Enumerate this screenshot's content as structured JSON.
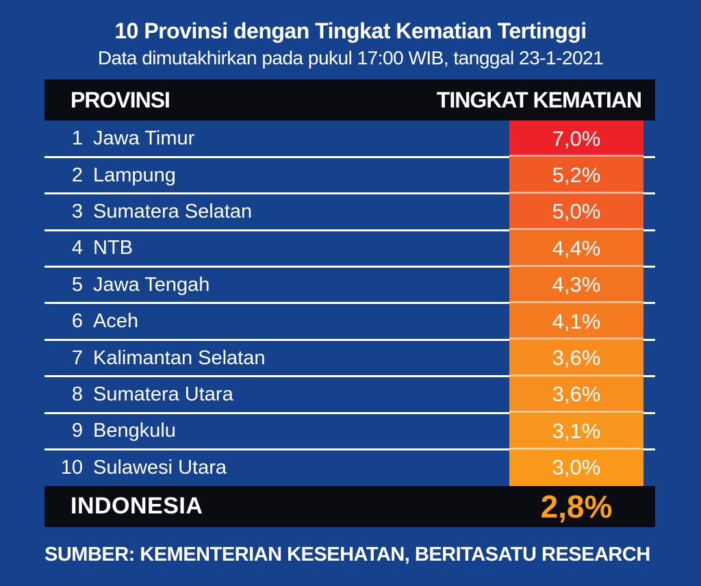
{
  "title": "10 Provinsi dengan Tingkat Kematian Tertinggi",
  "subtitle": "Data dimutakhirkan pada pukul 17:00 WIB, tanggal 23-1-2021",
  "table": {
    "columns": {
      "province": "PROVINSI",
      "rate": "TINGKAT KEMATIAN"
    },
    "rows": [
      {
        "rank": "1",
        "province": "Jawa Timur",
        "rate": "7,0%",
        "color": "#ED2128"
      },
      {
        "rank": "2",
        "province": "Lampung",
        "rate": "5,2%",
        "color": "#F15A25"
      },
      {
        "rank": "3",
        "province": "Sumatera Selatan",
        "rate": "5,0%",
        "color": "#F15D24"
      },
      {
        "rank": "4",
        "province": "NTB",
        "rate": "4,4%",
        "color": "#F37020"
      },
      {
        "rank": "5",
        "province": "Jawa Tengah",
        "rate": "4,3%",
        "color": "#F37420"
      },
      {
        "rank": "6",
        "province": "Aceh",
        "rate": "4,1%",
        "color": "#F47B1F"
      },
      {
        "rank": "7",
        "province": "Kalimantan Selatan",
        "rate": "3,6%",
        "color": "#F78D1E"
      },
      {
        "rank": "8",
        "province": "Sumatera Utara",
        "rate": "3,6%",
        "color": "#F78F1E"
      },
      {
        "rank": "9",
        "province": "Bengkulu",
        "rate": "3,1%",
        "color": "#F8971D"
      },
      {
        "rank": "10",
        "province": "Sulawesi Utara",
        "rate": "3,0%",
        "color": "#F99A1C"
      }
    ],
    "summary": {
      "label": "INDONESIA",
      "rate": "2,8%",
      "rate_color": "#F9A01B"
    }
  },
  "source": "SUMBER: KEMENTERIAN KESEHATAN, BERITASATU RESEARCH",
  "colors": {
    "background": "#16418D",
    "panel_black": "#0A0C12",
    "divider": "#FFFFFF",
    "text": "#FFFFFF",
    "top_rate": "#ED2128",
    "summary_rate": "#F9A01B"
  },
  "chart_data": {
    "type": "table",
    "title": "10 Provinsi dengan Tingkat Kematian Tertinggi",
    "subtitle": "Data dimutakhirkan pada pukul 17:00 WIB, tanggal 23-1-2021",
    "columns": [
      "PROVINSI",
      "TINGKAT KEMATIAN"
    ],
    "categories": [
      "Jawa Timur",
      "Lampung",
      "Sumatera Selatan",
      "NTB",
      "Jawa Tengah",
      "Aceh",
      "Kalimantan Selatan",
      "Sumatera Utara",
      "Bengkulu",
      "Sulawesi Utara"
    ],
    "values": [
      7.0,
      5.2,
      5.0,
      4.4,
      4.3,
      4.1,
      3.6,
      3.6,
      3.1,
      3.0
    ],
    "values_display": [
      "7,0%",
      "5,2%",
      "5,0%",
      "4,4%",
      "4,3%",
      "4,1%",
      "3,6%",
      "3,6%",
      "3,1%",
      "3,0%"
    ],
    "national": {
      "label": "INDONESIA",
      "value": 2.8,
      "display": "2,8%"
    },
    "unit": "percent",
    "source": "SUMBER: KEMENTERIAN KESEHATAN, BERITASATU RESEARCH",
    "legend_position": "none",
    "grid": false
  }
}
